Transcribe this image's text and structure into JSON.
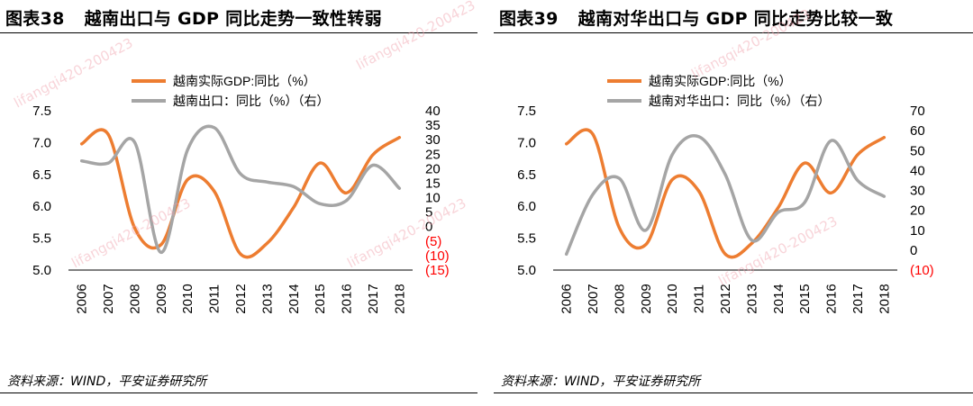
{
  "colors": {
    "orange": "#ED7D31",
    "gray": "#A5A5A5",
    "negative": "#FF0000"
  },
  "watermark": "lifangqi420-200423",
  "charts": [
    {
      "figure_no": "图表38",
      "title": "越南出口与 GDP 同比走势一致性转弱",
      "source": "资料来源：WIND，平安证券研究所",
      "legend": [
        "越南实际GDP:同比（%）",
        "越南出口：同比（%）（右）"
      ],
      "left_ticks": [
        "7.5",
        "7.0",
        "6.5",
        "6.0",
        "5.5",
        "5.0"
      ],
      "right_ticks": [
        "40",
        "35",
        "30",
        "25",
        "20",
        "15",
        "10",
        "5",
        "0",
        "(5)",
        "(10)",
        "(15)"
      ],
      "right_tick_values": [
        40,
        35,
        30,
        25,
        20,
        15,
        10,
        5,
        0,
        -5,
        -10,
        -15
      ]
    },
    {
      "figure_no": "图表39",
      "title": "越南对华出口与 GDP 同比走势比较一致",
      "source": "资料来源：WIND，平安证券研究所",
      "legend": [
        "越南实际GDP:同比（%）",
        "越南对华出口：同比（%）（右）"
      ],
      "left_ticks": [
        "7.5",
        "7.0",
        "6.5",
        "6.0",
        "5.5",
        "5.0"
      ],
      "right_ticks": [
        "70",
        "60",
        "50",
        "40",
        "30",
        "20",
        "10",
        "0",
        "(10)"
      ],
      "right_tick_values": [
        70,
        60,
        50,
        40,
        30,
        20,
        10,
        0,
        -10
      ]
    }
  ],
  "chart_data": [
    {
      "type": "line",
      "title": "越南出口与 GDP 同比走势一致性转弱",
      "categories": [
        "2006",
        "2007",
        "2008",
        "2009",
        "2010",
        "2011",
        "2012",
        "2013",
        "2014",
        "2015",
        "2016",
        "2017",
        "2018"
      ],
      "series": [
        {
          "name": "越南实际GDP:同比（%）",
          "axis": "left",
          "color": "#ED7D31",
          "values": [
            6.98,
            7.13,
            5.66,
            5.4,
            6.42,
            6.24,
            5.25,
            5.42,
            5.98,
            6.68,
            6.21,
            6.81,
            7.08
          ]
        },
        {
          "name": "越南出口：同比（%）（右）",
          "axis": "right",
          "color": "#A5A5A5",
          "values": [
            22.7,
            21.9,
            29.1,
            -8.9,
            26.5,
            34.2,
            18.2,
            15.4,
            13.8,
            7.9,
            9.0,
            21.2,
            13.2
          ]
        }
      ],
      "ylim_left": [
        5.0,
        7.5
      ],
      "ylim_right": [
        -15,
        40
      ]
    },
    {
      "type": "line",
      "title": "越南对华出口与 GDP 同比走势比较一致",
      "categories": [
        "2006",
        "2007",
        "2008",
        "2009",
        "2010",
        "2011",
        "2012",
        "2013",
        "2014",
        "2015",
        "2016",
        "2017",
        "2018"
      ],
      "series": [
        {
          "name": "越南实际GDP:同比（%）",
          "axis": "left",
          "color": "#ED7D31",
          "values": [
            6.98,
            7.13,
            5.66,
            5.4,
            6.42,
            6.24,
            5.25,
            5.42,
            5.98,
            6.68,
            6.21,
            6.81,
            7.08
          ]
        },
        {
          "name": "越南对华出口：同比（%）（右）",
          "axis": "right",
          "color": "#A5A5A5",
          "values": [
            -2,
            28,
            36,
            10,
            48,
            57,
            38,
            5,
            19,
            24,
            55,
            35,
            27
          ]
        }
      ],
      "ylim_left": [
        5.0,
        7.5
      ],
      "ylim_right": [
        -10,
        70
      ]
    }
  ]
}
